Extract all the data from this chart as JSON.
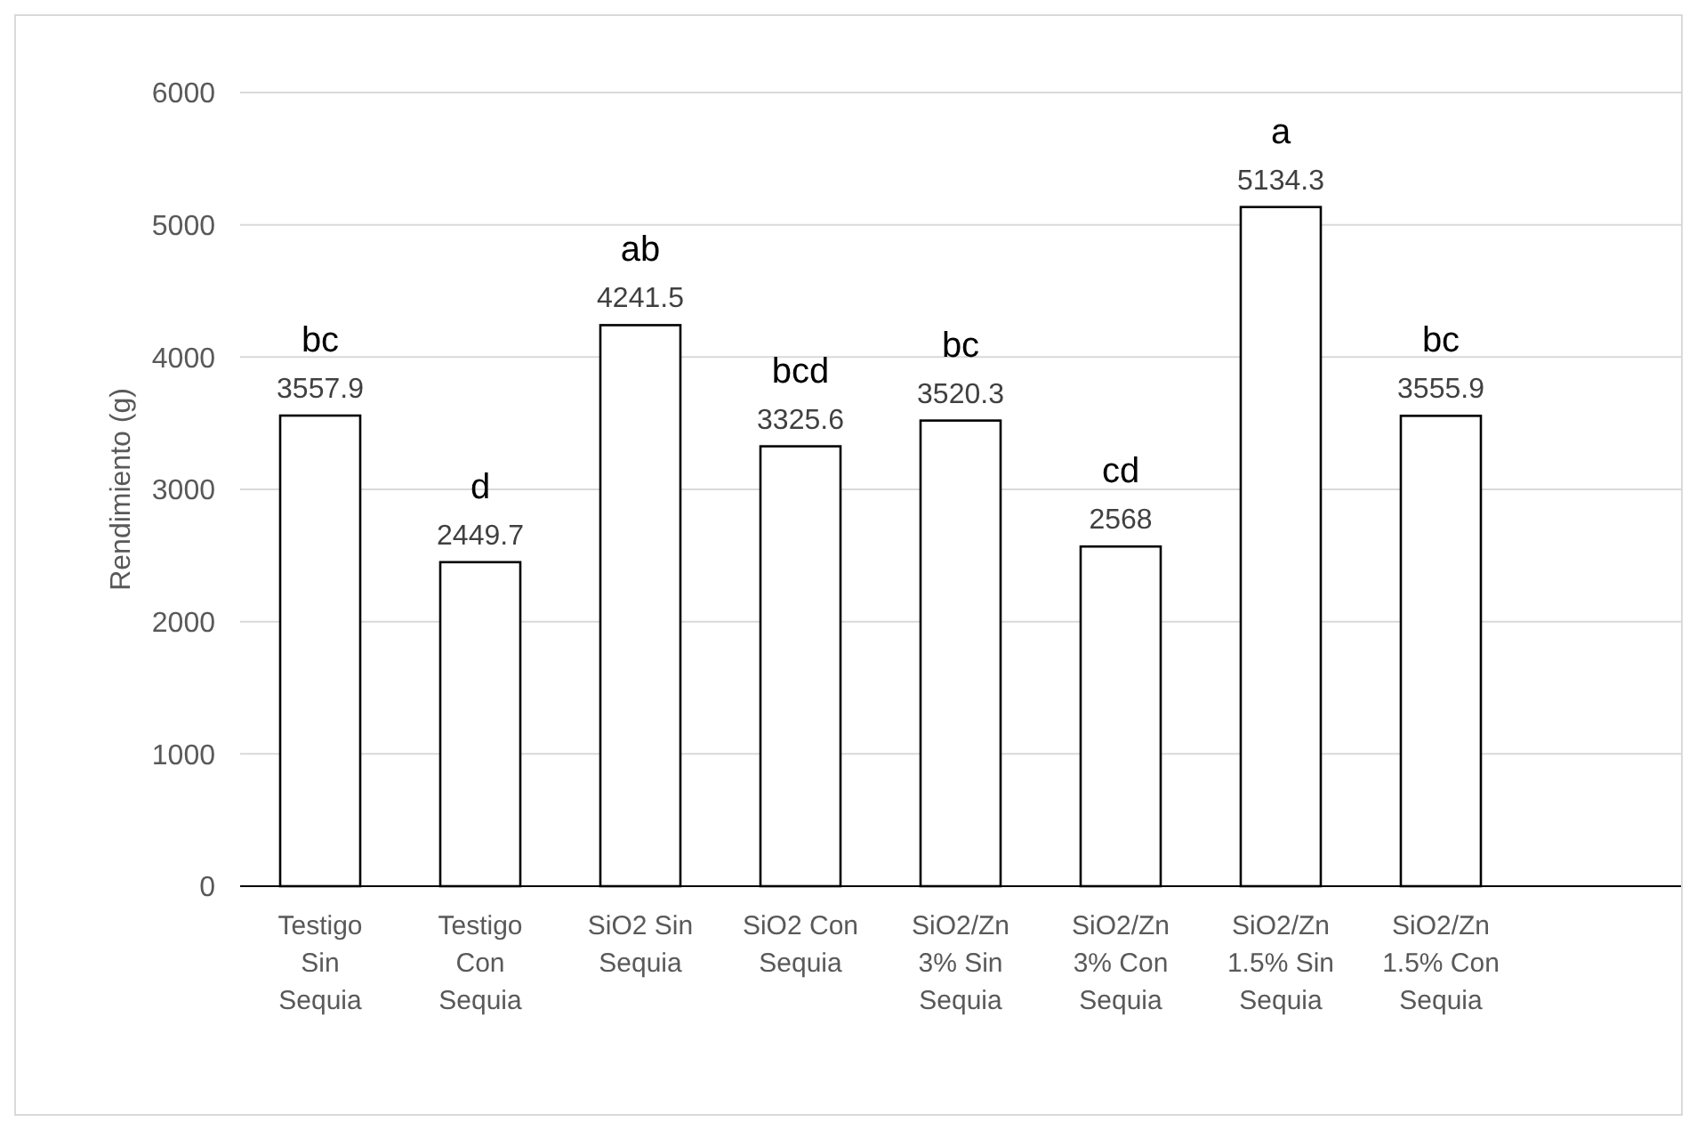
{
  "chart_data": {
    "type": "bar",
    "ylabel": "Rendimiento (g)",
    "categories": [
      "Testigo Sin Sequia",
      "Testigo Con Sequia",
      "SiO2 Sin Sequia",
      "SiO2 Con Sequia",
      "SiO2/Zn 3% Sin Sequia",
      "SiO2/Zn 3% Con Sequia",
      "SiO2/Zn 1.5% Sin Sequia",
      "SiO2/Zn 1.5% Con Sequia",
      null
    ],
    "values": [
      3557.9,
      2449.7,
      4241.5,
      3325.6,
      3520.3,
      2568,
      5134.3,
      3555.9,
      null
    ],
    "color": "#ffffff",
    "data_labels": true,
    "ylim": [
      0,
      6000
    ],
    "yticks": [
      0,
      1000,
      2000,
      3000,
      4000,
      5000,
      6000
    ],
    "grid": "y",
    "annotations": [
      {
        "text": "bc",
        "x": "Testigo Sin Sequia",
        "y": 3557.9
      },
      {
        "text": "d",
        "x": "Testigo Con Sequia",
        "y": 2449.7
      },
      {
        "text": "ab",
        "x": "SiO2 Sin Sequia",
        "y": 4241.5
      },
      {
        "text": "bcd",
        "x": "SiO2 Con Sequia",
        "y": 3325.6
      },
      {
        "text": "bc",
        "x": "SiO2/Zn 3% Sin Sequia",
        "y": 3520.3
      },
      {
        "text": "cd",
        "x": "SiO2/Zn 3% Con Sequia",
        "y": 2568
      },
      {
        "text": "a",
        "x": "SiO2/Zn 1.5% Sin Sequia",
        "y": 5134.3
      },
      {
        "text": "bc",
        "x": "SiO2/Zn 1.5% Con Sequia",
        "y": 3555.9
      }
    ]
  }
}
